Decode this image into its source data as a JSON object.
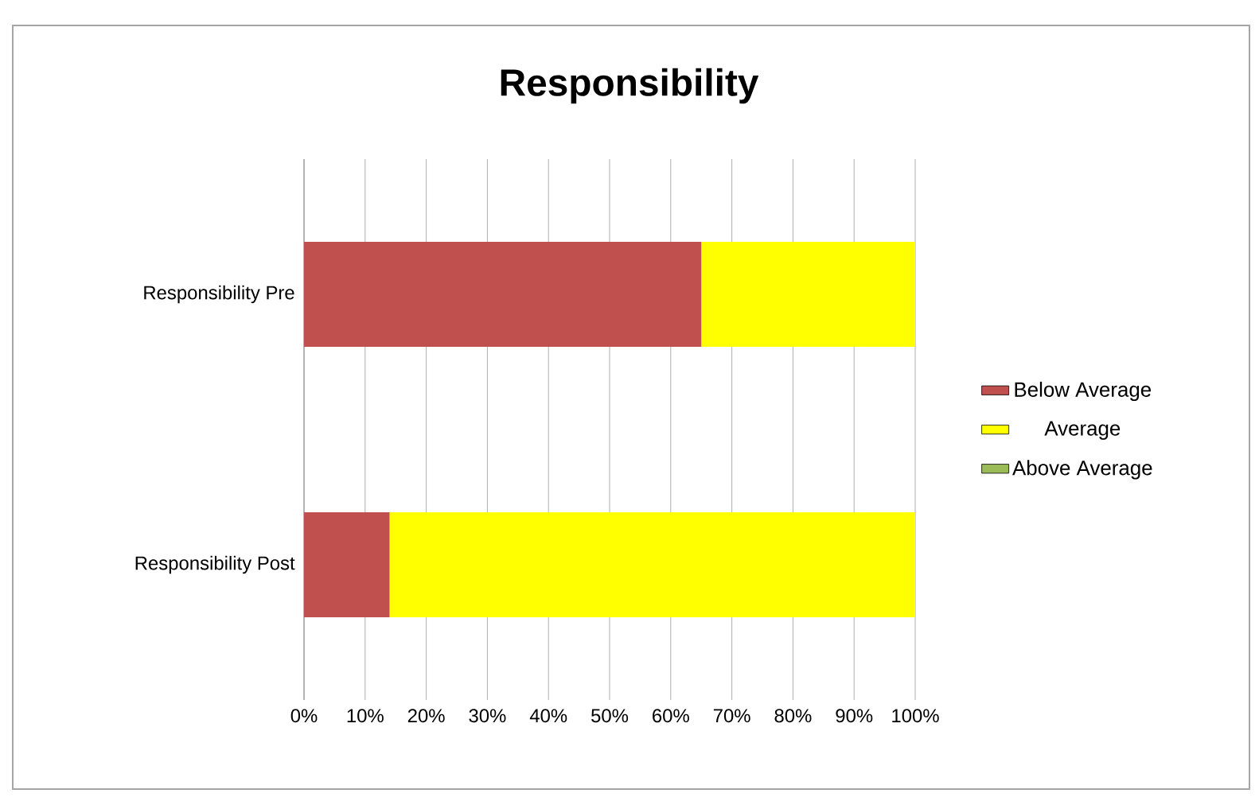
{
  "chart_data": {
    "type": "bar",
    "orientation": "horizontal",
    "stacked": true,
    "title": "Responsibility",
    "categories": [
      "Responsibility Pre",
      "Responsibility Post"
    ],
    "series": [
      {
        "name": "Below Average",
        "color": "#c0504d",
        "values": [
          65,
          14
        ]
      },
      {
        "name": "Average",
        "color": "#ffff00",
        "values": [
          35,
          86
        ]
      },
      {
        "name": "Above Average",
        "color": "#9bbb59",
        "values": [
          0,
          0
        ]
      }
    ],
    "xlim": [
      0,
      100
    ],
    "xticks": [
      {
        "value": 0,
        "label": "0%"
      },
      {
        "value": 10,
        "label": "10%"
      },
      {
        "value": 20,
        "label": "20%"
      },
      {
        "value": 30,
        "label": "30%"
      },
      {
        "value": 40,
        "label": "40%"
      },
      {
        "value": 50,
        "label": "50%"
      },
      {
        "value": 60,
        "label": "60%"
      },
      {
        "value": 70,
        "label": "70%"
      },
      {
        "value": 80,
        "label": "80%"
      },
      {
        "value": 90,
        "label": "90%"
      },
      {
        "value": 100,
        "label": "100%"
      }
    ],
    "grid": "x",
    "legend": "right"
  }
}
